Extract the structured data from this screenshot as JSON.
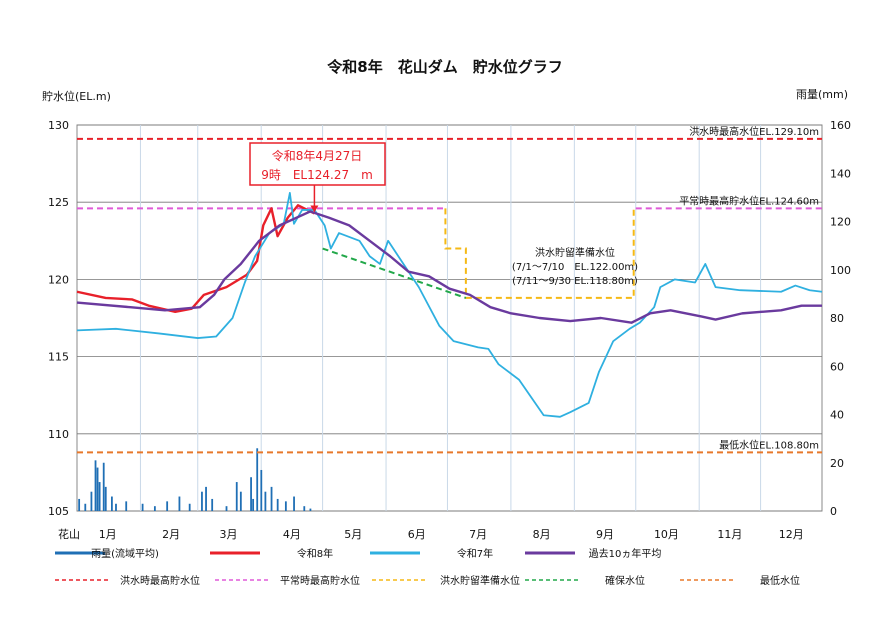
{
  "chart_data": {
    "type": "line",
    "title": "令和8年　花山ダム　貯水位グラフ",
    "ylabel": "貯水位(EL.m)",
    "y2label": "雨量(mm)",
    "ylim": [
      105,
      130
    ],
    "y2lim": [
      0,
      160
    ],
    "yticks": [
      105,
      110,
      115,
      120,
      125,
      130
    ],
    "y2ticks": [
      0,
      20,
      40,
      60,
      80,
      100,
      120,
      140,
      160
    ],
    "x_prefix": "花山",
    "xticks": [
      "1月",
      "2月",
      "3月",
      "4月",
      "5月",
      "6月",
      "7月",
      "8月",
      "9月",
      "10月",
      "11月",
      "12月"
    ],
    "grid": true,
    "colors": {
      "rain": "#1f6fb5",
      "r8": "#e8202a",
      "r7": "#2fb0e0",
      "avg": "#6a3a9e",
      "flood_max": "#e8202a",
      "normal_max": "#e05ad8",
      "flood_prep": "#f5b915",
      "secure": "#22a84a",
      "min": "#e8782a"
    },
    "series": [
      {
        "name": "令和8年",
        "key": "r8",
        "points": [
          [
            "1/1",
            119.2
          ],
          [
            "1/15",
            118.8
          ],
          [
            "1/28",
            118.7
          ],
          [
            "2/5",
            118.3
          ],
          [
            "2/18",
            117.9
          ],
          [
            "2/26",
            118.1
          ],
          [
            "3/4",
            119.0
          ],
          [
            "3/15",
            119.5
          ],
          [
            "3/25",
            120.3
          ],
          [
            "3/30",
            121.2
          ],
          [
            "4/2",
            123.5
          ],
          [
            "4/6",
            124.6
          ],
          [
            "4/9",
            122.8
          ],
          [
            "4/14",
            124.0
          ],
          [
            "4/19",
            124.8
          ],
          [
            "4/27",
            124.27
          ]
        ]
      },
      {
        "name": "令和7年",
        "key": "r7",
        "points": [
          [
            "1/1",
            116.7
          ],
          [
            "1/20",
            116.8
          ],
          [
            "2/10",
            116.5
          ],
          [
            "3/1",
            116.2
          ],
          [
            "3/10",
            116.3
          ],
          [
            "3/18",
            117.5
          ],
          [
            "3/24",
            119.8
          ],
          [
            "3/29",
            121.5
          ],
          [
            "4/5",
            123.0
          ],
          [
            "4/12",
            123.6
          ],
          [
            "4/15",
            125.6
          ],
          [
            "4/17",
            123.6
          ],
          [
            "4/21",
            124.5
          ],
          [
            "4/27",
            124.5
          ],
          [
            "5/2",
            123.5
          ],
          [
            "5/5",
            122.0
          ],
          [
            "5/9",
            123.0
          ],
          [
            "5/19",
            122.5
          ],
          [
            "5/24",
            121.5
          ],
          [
            "5/29",
            121.0
          ],
          [
            "6/2",
            122.5
          ],
          [
            "6/7",
            121.5
          ],
          [
            "6/17",
            119.5
          ],
          [
            "6/27",
            117.0
          ],
          [
            "7/4",
            116.0
          ],
          [
            "7/16",
            115.6
          ],
          [
            "7/21",
            115.5
          ],
          [
            "7/26",
            114.5
          ],
          [
            "8/5",
            113.5
          ],
          [
            "8/17",
            111.2
          ],
          [
            "8/25",
            111.1
          ],
          [
            "8/30",
            111.4
          ],
          [
            "9/8",
            112.0
          ],
          [
            "9/13",
            114.0
          ],
          [
            "9/20",
            116.0
          ],
          [
            "9/28",
            116.8
          ],
          [
            "10/3",
            117.2
          ],
          [
            "10/10",
            118.2
          ],
          [
            "10/13",
            119.5
          ],
          [
            "10/20",
            120.0
          ],
          [
            "10/30",
            119.8
          ],
          [
            "11/4",
            121.0
          ],
          [
            "11/9",
            119.5
          ],
          [
            "11/21",
            119.3
          ],
          [
            "12/11",
            119.2
          ],
          [
            "12/18",
            119.6
          ],
          [
            "12/25",
            119.3
          ],
          [
            "12/31",
            119.2
          ]
        ]
      },
      {
        "name": "過去10ヵ年平均",
        "key": "avg",
        "points": [
          [
            "1/1",
            118.5
          ],
          [
            "1/27",
            118.2
          ],
          [
            "2/13",
            118.0
          ],
          [
            "3/2",
            118.2
          ],
          [
            "3/9",
            119.0
          ],
          [
            "3/14",
            120.0
          ],
          [
            "3/22",
            121.0
          ],
          [
            "3/31",
            122.5
          ],
          [
            "4/10",
            123.5
          ],
          [
            "4/25",
            124.4
          ],
          [
            "5/4",
            124.0
          ],
          [
            "5/14",
            123.5
          ],
          [
            "5/24",
            122.5
          ],
          [
            "6/3",
            121.5
          ],
          [
            "6/12",
            120.5
          ],
          [
            "6/22",
            120.2
          ],
          [
            "7/2",
            119.4
          ],
          [
            "7/12",
            119.0
          ],
          [
            "7/22",
            118.2
          ],
          [
            "8/1",
            117.8
          ],
          [
            "8/15",
            117.5
          ],
          [
            "8/30",
            117.3
          ],
          [
            "9/14",
            117.5
          ],
          [
            "9/29",
            117.2
          ],
          [
            "10/8",
            117.8
          ],
          [
            "10/18",
            118.0
          ],
          [
            "11/2",
            117.6
          ],
          [
            "11/9",
            117.4
          ],
          [
            "11/22",
            117.8
          ],
          [
            "12/11",
            118.0
          ],
          [
            "12/21",
            118.3
          ],
          [
            "12/31",
            118.3
          ]
        ]
      }
    ],
    "rain": {
      "name": "雨量(流域平均)",
      "points": [
        [
          "1/2",
          5
        ],
        [
          "1/5",
          3
        ],
        [
          "1/8",
          8
        ],
        [
          "1/10",
          21
        ],
        [
          "1/11",
          18
        ],
        [
          "1/12",
          12
        ],
        [
          "1/14",
          20
        ],
        [
          "1/15",
          10
        ],
        [
          "1/18",
          6
        ],
        [
          "1/20",
          3
        ],
        [
          "1/25",
          4
        ],
        [
          "2/2",
          3
        ],
        [
          "2/8",
          2
        ],
        [
          "2/14",
          4
        ],
        [
          "2/20",
          6
        ],
        [
          "2/25",
          3
        ],
        [
          "3/3",
          8
        ],
        [
          "3/5",
          10
        ],
        [
          "3/8",
          5
        ],
        [
          "3/15",
          2
        ],
        [
          "3/20",
          12
        ],
        [
          "3/22",
          8
        ],
        [
          "3/27",
          14
        ],
        [
          "3/28",
          5
        ],
        [
          "3/30",
          26
        ],
        [
          "4/1",
          17
        ],
        [
          "4/3",
          8
        ],
        [
          "4/6",
          10
        ],
        [
          "4/9",
          5
        ],
        [
          "4/13",
          4
        ],
        [
          "4/17",
          6
        ],
        [
          "4/22",
          2
        ],
        [
          "4/25",
          1
        ]
      ]
    },
    "reference_lines": [
      {
        "name": "洪水時最高貯水位",
        "key": "flood_max",
        "label": "洪水時最高水位EL.129.10m",
        "points": [
          [
            "1/1",
            129.1
          ],
          [
            "12/31",
            129.1
          ]
        ]
      },
      {
        "name": "平常時最高貯水位",
        "key": "normal_max",
        "label": "平常時最高貯水位EL.124.60m",
        "points": [
          [
            "1/1",
            124.6
          ],
          [
            "6/30",
            124.6
          ]
        ],
        "points2": [
          [
            "10/1",
            124.6
          ],
          [
            "12/31",
            124.6
          ]
        ]
      },
      {
        "name": "洪水貯留準備水位",
        "key": "flood_prep",
        "points": [
          [
            "6/30",
            124.6
          ],
          [
            "6/30",
            122.0
          ],
          [
            "7/10",
            122.0
          ],
          [
            "7/10",
            118.8
          ],
          [
            "9/30",
            118.8
          ],
          [
            "9/30",
            124.6
          ]
        ]
      },
      {
        "name": "確保水位",
        "key": "secure",
        "points": [
          [
            "5/1",
            122.0
          ],
          [
            "7/10",
            118.8
          ]
        ]
      },
      {
        "name": "最低水位",
        "key": "min",
        "label": "最低水位EL.108.80m",
        "points": [
          [
            "1/1",
            108.8
          ],
          [
            "12/31",
            108.8
          ]
        ]
      }
    ],
    "annotations": {
      "current_line1": "令和8年4月27日",
      "current_line2": "9時　EL124.27　m",
      "current_date": "4/27",
      "current_value": 124.27,
      "prep_title": "洪水貯留準備水位",
      "prep_line1": "(7/1～7/10　EL.122.00m)",
      "prep_line2": "(7/11～9/30 EL.118.80m)"
    }
  }
}
